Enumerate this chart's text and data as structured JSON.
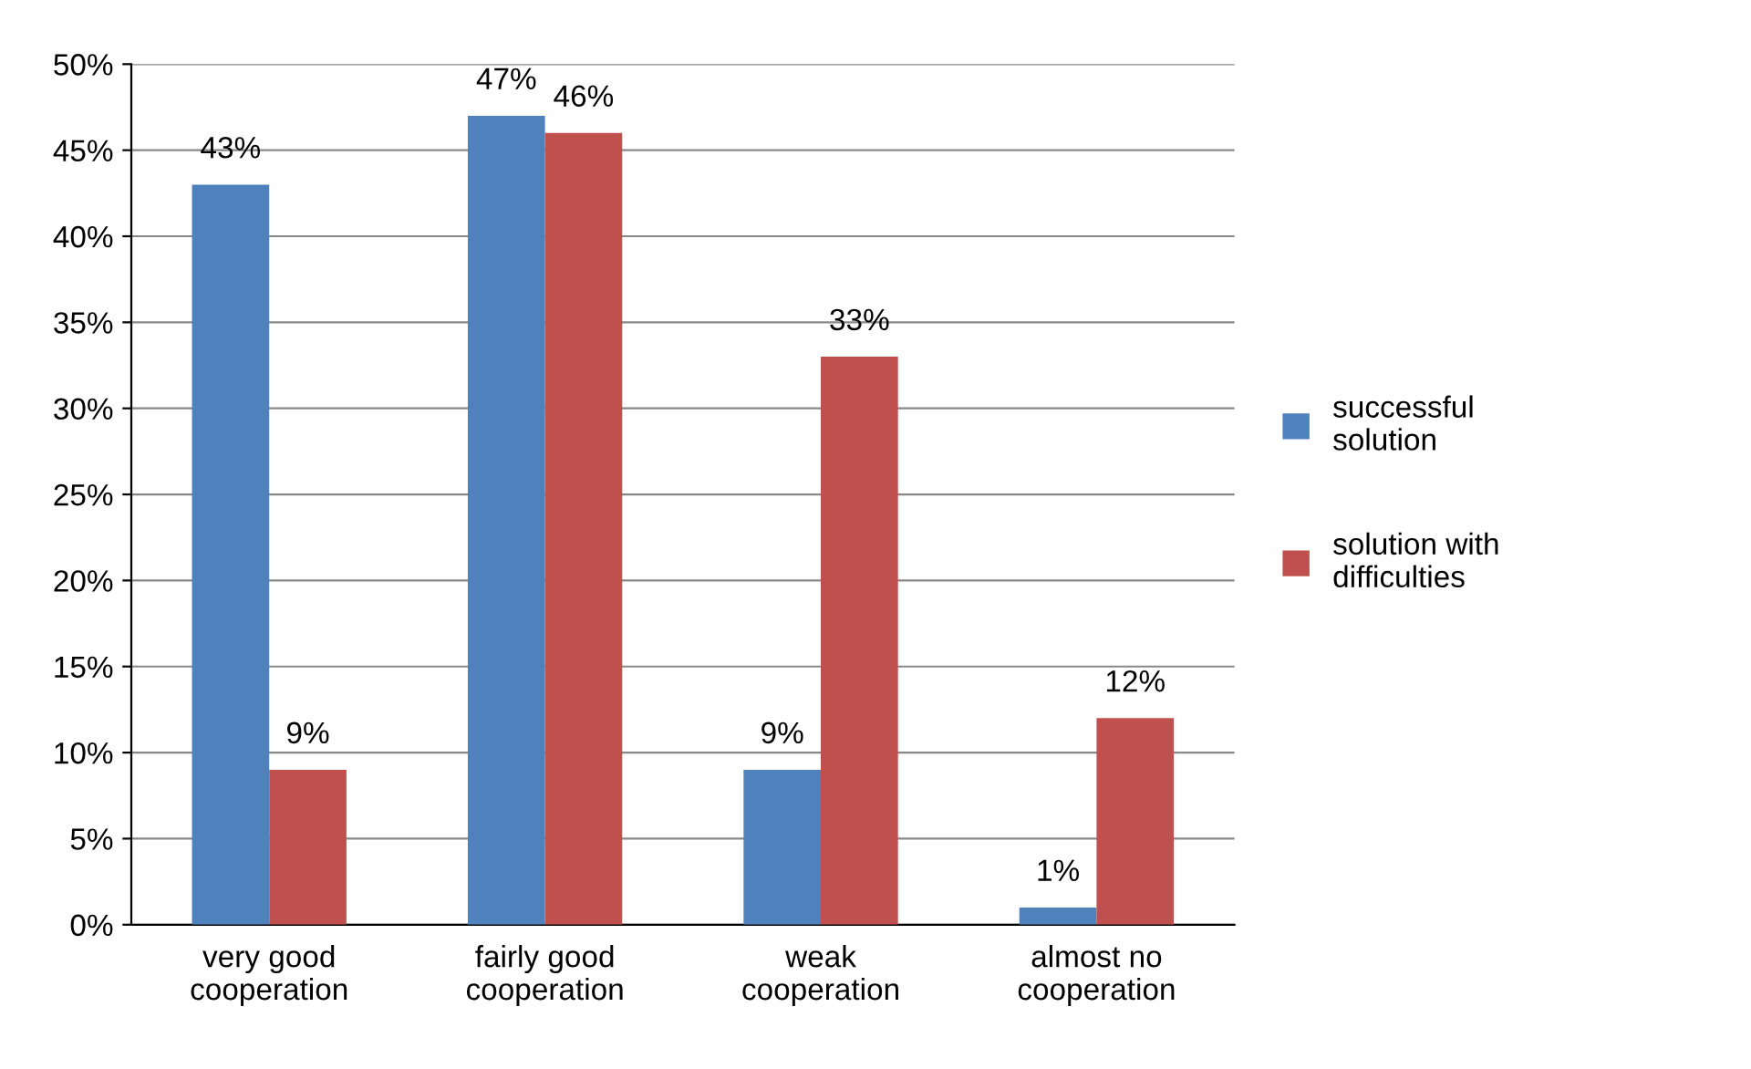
{
  "chart_data": {
    "type": "bar",
    "categories": [
      "very good cooperation",
      "fairly good cooperation",
      "weak cooperation",
      "almost no cooperation"
    ],
    "series": [
      {
        "name": "successful solution",
        "color": "#4f81bd",
        "values": [
          43,
          47,
          9,
          1
        ],
        "value_labels": [
          "43%",
          "47%",
          "9%",
          "1%"
        ]
      },
      {
        "name": "solution with difficulties",
        "color": "#c0504d",
        "values": [
          9,
          46,
          33,
          12
        ],
        "value_labels": [
          "9%",
          "46%",
          "33%",
          "12%"
        ]
      }
    ],
    "ylim": [
      0,
      50
    ],
    "yticks": [
      {
        "value": 0,
        "label": "0%"
      },
      {
        "value": 5,
        "label": "5%"
      },
      {
        "value": 10,
        "label": "10%"
      },
      {
        "value": 15,
        "label": "15%"
      },
      {
        "value": 20,
        "label": "20%"
      },
      {
        "value": 25,
        "label": "25%"
      },
      {
        "value": 30,
        "label": "30%"
      },
      {
        "value": 35,
        "label": "35%"
      },
      {
        "value": 40,
        "label": "40%"
      },
      {
        "value": 45,
        "label": "45%"
      },
      {
        "value": 50,
        "label": "50%"
      }
    ],
    "grid": "y",
    "legend": "right"
  }
}
